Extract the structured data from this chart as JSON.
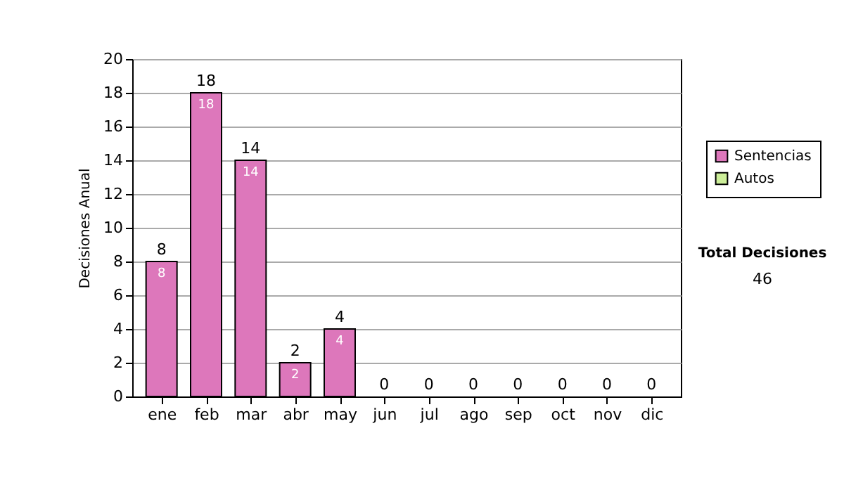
{
  "chart_data": {
    "type": "bar",
    "stacked": true,
    "ylabel": "Decisiones Anual",
    "categories": [
      "ene",
      "feb",
      "mar",
      "abr",
      "may",
      "jun",
      "jul",
      "ago",
      "sep",
      "oct",
      "nov",
      "dic"
    ],
    "series": [
      {
        "name": "Sentencias",
        "color": "#dd77bb",
        "values": [
          8,
          18,
          14,
          2,
          4,
          0,
          0,
          0,
          0,
          0,
          0,
          0
        ],
        "value_labels": [
          "8",
          "18",
          "14",
          "2",
          "4",
          null,
          null,
          null,
          null,
          null,
          null,
          null
        ]
      },
      {
        "name": "Autos",
        "color": "#ccee99",
        "values": [
          0,
          0,
          0,
          0,
          0,
          0,
          0,
          0,
          0,
          0,
          0,
          0
        ]
      }
    ],
    "totals": [
      "8",
      "18",
      "14",
      "2",
      "4",
      "0",
      "0",
      "0",
      "0",
      "0",
      "0",
      "0"
    ],
    "ylim": [
      0,
      20
    ],
    "yticks": [
      0,
      2,
      4,
      6,
      8,
      10,
      12,
      14,
      16,
      18,
      20
    ],
    "grid": "y",
    "legend": "right",
    "annotations": [
      "Total Decisiones",
      "46"
    ]
  }
}
